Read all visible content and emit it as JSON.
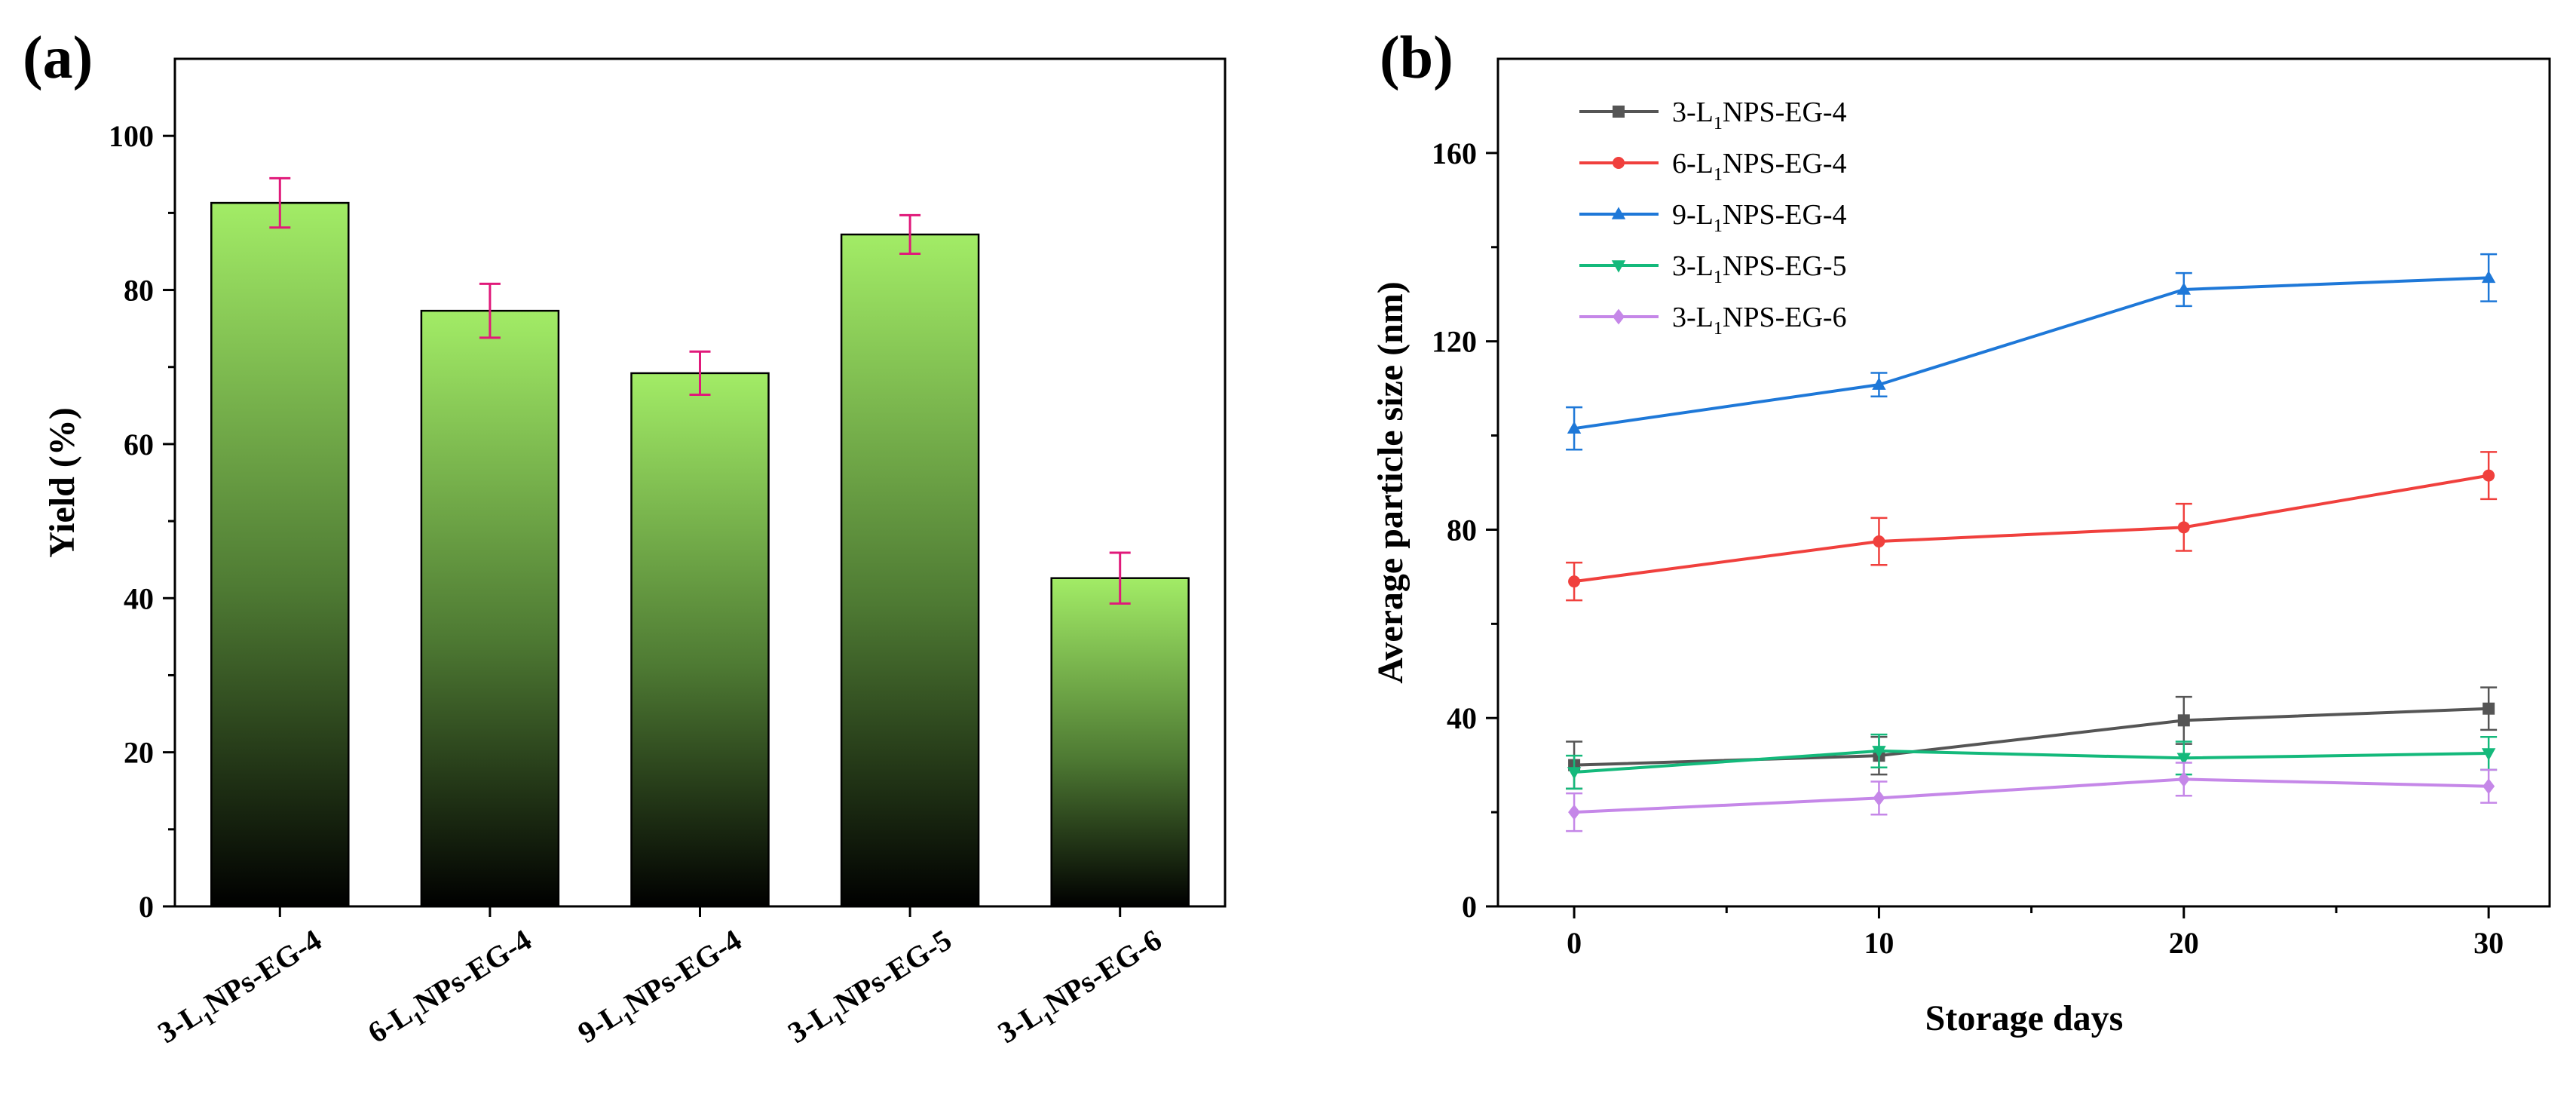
{
  "chart_data": [
    {
      "panel_label": "(a)",
      "type": "bar",
      "title": "",
      "xlabel": "",
      "ylabel": "Yield (%)",
      "ylim": [
        0,
        110
      ],
      "yticks": [
        0,
        20,
        40,
        60,
        80,
        100
      ],
      "categories": [
        {
          "pre": "3-L",
          "sub": "1",
          "post": "NPs-EG-4"
        },
        {
          "pre": "6-L",
          "sub": "1",
          "post": "NPs-EG-4"
        },
        {
          "pre": "9-L",
          "sub": "1",
          "post": "NPs-EG-4"
        },
        {
          "pre": "3-L",
          "sub": "1",
          "post": "NPs-EG-5"
        },
        {
          "pre": "3-L",
          "sub": "1",
          "post": "NPs-EG-6"
        }
      ],
      "values": [
        91.3,
        77.3,
        69.2,
        87.2,
        42.6
      ],
      "errors": [
        3.2,
        3.5,
        2.8,
        2.5,
        3.3
      ],
      "bar_gradient_top": "#a2ec66",
      "bar_gradient_mid": "#4e7a33",
      "bar_gradient_bottom": "#000000",
      "error_color": "#e0197a",
      "grid": false
    },
    {
      "panel_label": "(b)",
      "type": "line",
      "title": "",
      "xlabel": "Storage days",
      "ylabel": "Average particle size (nm)",
      "xlim": [
        -2.5,
        32
      ],
      "ylim": [
        0,
        180
      ],
      "xticks": [
        0,
        10,
        20,
        30
      ],
      "yticks": [
        0,
        40,
        80,
        120,
        160
      ],
      "x": [
        0,
        10,
        20,
        30
      ],
      "legend_position": "top-left",
      "grid": false,
      "series": [
        {
          "name": {
            "pre": "3-L",
            "sub": "1",
            "post": "NPS-EG-4"
          },
          "color": "#555555",
          "marker": "square",
          "values": [
            30,
            32,
            39.5,
            42
          ],
          "errors": [
            5,
            4,
            5,
            4.5
          ]
        },
        {
          "name": {
            "pre": "6-L",
            "sub": "1",
            "post": "NPS-EG-4"
          },
          "color": "#f0403d",
          "marker": "circle",
          "values": [
            69,
            77.5,
            80.5,
            91.5
          ],
          "errors": [
            4,
            5,
            5,
            5
          ]
        },
        {
          "name": {
            "pre": "9-L",
            "sub": "1",
            "post": "NPS-EG-4"
          },
          "color": "#1e78d8",
          "marker": "triangle-up",
          "values": [
            101.5,
            110.8,
            131,
            133.5
          ],
          "errors": [
            4.5,
            2.5,
            3.5,
            5
          ]
        },
        {
          "name": {
            "pre": "3-L",
            "sub": "1",
            "post": "NPS-EG-5"
          },
          "color": "#14b97b",
          "marker": "triangle-down",
          "values": [
            28.5,
            33,
            31.5,
            32.5
          ],
          "errors": [
            3.5,
            3.5,
            3.5,
            3.5
          ]
        },
        {
          "name": {
            "pre": "3-L",
            "sub": "1",
            "post": "NPS-EG-6"
          },
          "color": "#c587e8",
          "marker": "diamond",
          "values": [
            20,
            23,
            27,
            25.5
          ],
          "errors": [
            4,
            3.5,
            3.5,
            3.5
          ]
        }
      ]
    }
  ]
}
